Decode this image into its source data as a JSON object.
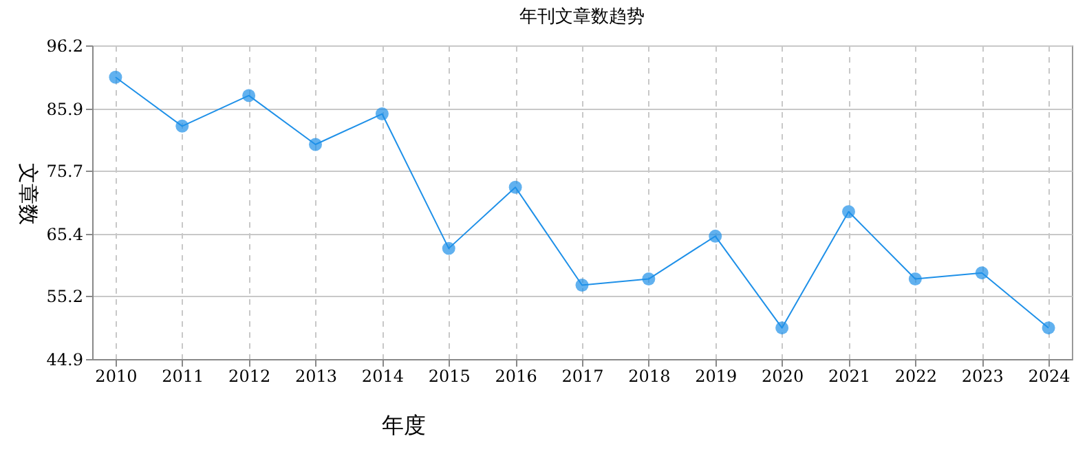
{
  "chart_data": {
    "type": "line",
    "title": "年刊文章数趋势",
    "xlabel": "年度",
    "ylabel": "文章数",
    "categories": [
      "2010",
      "2011",
      "2012",
      "2013",
      "2014",
      "2015",
      "2016",
      "2017",
      "2018",
      "2019",
      "2020",
      "2021",
      "2022",
      "2023",
      "2024"
    ],
    "series": [
      {
        "color": "#1e90e8",
        "values": [
          91,
          83,
          88,
          80,
          85,
          63,
          73,
          57,
          58,
          65,
          50,
          69,
          58,
          59,
          50
        ]
      }
    ],
    "ylim": [
      44.9,
      96.2
    ],
    "yticks": [
      44.9,
      55.2,
      65.4,
      75.7,
      85.9,
      96.2
    ],
    "grid": true,
    "marker": "circle",
    "line_style": "solid"
  }
}
